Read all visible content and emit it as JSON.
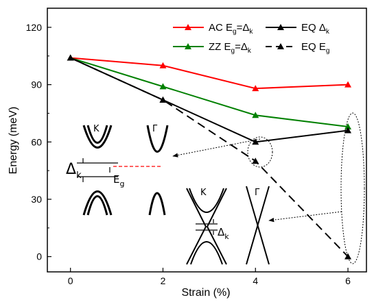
{
  "chart_data": {
    "type": "line",
    "xlabel": "Strain (%)",
    "ylabel": "Energy (meV)",
    "xlim": [
      -0.5,
      6.4
    ],
    "ylim": [
      -8,
      130
    ],
    "x_ticks": [
      "0",
      "2",
      "4",
      "6"
    ],
    "y_ticks": [
      "0",
      "30",
      "60",
      "90",
      "120"
    ],
    "legend_position": "top-right",
    "series": [
      {
        "name": "AC Eg=Δk",
        "label_main": "AC E",
        "label_sub": "g",
        "label_rest": "=Δ",
        "label_sub2": "k",
        "color": "#ff0000",
        "style": "solid",
        "marker": "triangle",
        "x": [
          0,
          2,
          4,
          6
        ],
        "y": [
          104,
          100,
          88,
          90
        ]
      },
      {
        "name": "ZZ Eg=Δk",
        "label_main": "ZZ  E",
        "label_sub": "g",
        "label_rest": "=Δ",
        "label_sub2": "k",
        "color": "#008000",
        "style": "solid",
        "marker": "triangle",
        "x": [
          0,
          2,
          4,
          6
        ],
        "y": [
          104,
          89,
          74,
          68
        ]
      },
      {
        "name": "EQ Δk",
        "label_main": "EQ  Δ",
        "label_sub": "k",
        "label_rest": "",
        "label_sub2": "",
        "color": "#000000",
        "style": "solid",
        "marker": "triangle",
        "x": [
          0,
          2,
          4,
          6
        ],
        "y": [
          104,
          82,
          60,
          66
        ]
      },
      {
        "name": "EQ Eg",
        "label_main": "EQ  E",
        "label_sub": "g",
        "label_rest": "",
        "label_sub2": "",
        "color": "#000000",
        "style": "dashed",
        "marker": "triangle",
        "x": [
          0,
          2,
          4,
          6
        ],
        "y": [
          104,
          82,
          50,
          0
        ]
      }
    ],
    "annotations": {
      "K": "K",
      "Gamma": "Γ",
      "delta_main": "Δ",
      "delta_sub": "k",
      "eg_main": "E",
      "eg_sub": "g"
    }
  }
}
